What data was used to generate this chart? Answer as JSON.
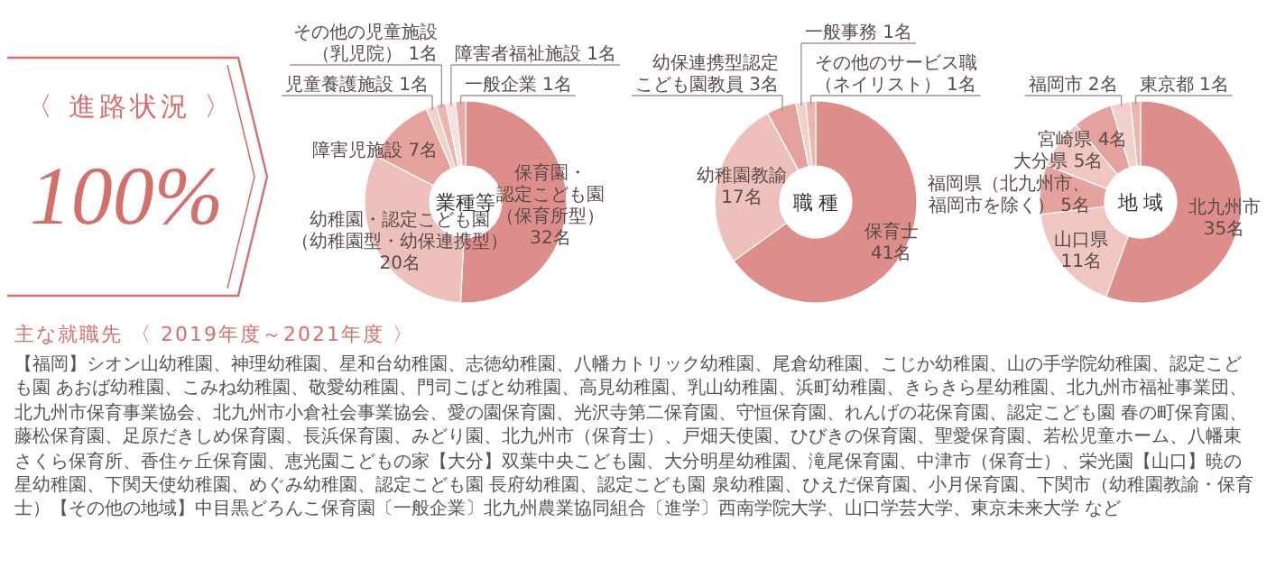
{
  "chart_data": [
    {
      "type": "other",
      "title": "〈 進路状況 〉",
      "annotations": [
        "100%"
      ]
    },
    {
      "type": "donut",
      "title": "業種等",
      "categories": [
        "保育園・認定こども園（保育所型）",
        "幼稚園・認定こども園（幼稚園型・幼保連携型）",
        "障害児施設",
        "児童養護施設",
        "その他の児童施設（乳児院）",
        "障害者福祉施設",
        "一般企業"
      ],
      "values": [
        32,
        20,
        7,
        1,
        1,
        1,
        1
      ],
      "value_labels": [
        "32名",
        "20名",
        "7名",
        "1名",
        "1名",
        "1名",
        "1名"
      ],
      "colors": [
        "#dd8e8a",
        "#eec0bb",
        "#e5a29d",
        "#f2d0cc",
        "#ebb5b0",
        "#f7e0dd",
        "#e8aaa5"
      ]
    },
    {
      "type": "donut",
      "title": "職 種",
      "categories": [
        "保育士",
        "幼稚園教諭",
        "幼保連携型認定こども園教員",
        "一般事務",
        "その他のサービス職（ネイリスト）"
      ],
      "values": [
        41,
        17,
        3,
        1,
        1
      ],
      "value_labels": [
        "41名",
        "17名",
        "3名",
        "1名",
        "1名"
      ],
      "colors": [
        "#dd8e8a",
        "#eec0bb",
        "#e5a29d",
        "#f2d0cc",
        "#ebb5b0"
      ]
    },
    {
      "type": "donut",
      "title": "地 域",
      "categories": [
        "北九州市",
        "山口県",
        "福岡県（北九州市、福岡市を除く）",
        "大分県",
        "宮崎県",
        "福岡市",
        "東京都"
      ],
      "values": [
        35,
        11,
        5,
        5,
        4,
        2,
        1
      ],
      "value_labels": [
        "35名",
        "11名",
        "5名",
        "5名",
        "4名",
        "2名",
        "1名"
      ],
      "colors": [
        "#dd8e8a",
        "#f0c6c1",
        "#e5a29d",
        "#f0c6c1",
        "#e5a29d",
        "#f2d0cc",
        "#ebb5b0"
      ]
    },
    {
      "type": "other",
      "title": "主な就職先 〈 2019年度～2021年度 〉",
      "annotations": [
        "【福岡】シオン山幼稚園、神理幼稚園、星和台幼稚園、志徳幼稚園、八幡カトリック幼稚園、尾倉幼稚園、こじか幼稚園、山の手学院幼稚園、認定こども園 あおば幼稚園、こみね幼稚園、敬愛幼稚園、門司こばと幼稚園、高見幼稚園、乳山幼稚園、浜町幼稚園、きらきら星幼稚園、北九州市福祉事業団、北九州市保育事業協会、北九州市小倉社会事業協会、愛の園保育園、光沢寺第二保育園、守恒保育園、れんげの花保育園、認定こども園 春の町保育園、藤松保育園、足原だきしめ保育園、長浜保育園、みどり園、北九州市（保育士）、戸畑天使園、ひびきの保育園、聖愛保育園、若松児童ホーム、八幡東さくら保育所、香住ヶ丘保育園、恵光園こどもの家【大分】双葉中央こども園、大分明星幼稚園、滝尾保育園、中津市（保育士）、栄光園【山口】暁の星幼稚園、下関天使幼稚園、めぐみ幼稚園、認定こども園 長府幼稚園、認定こども園 泉幼稚園、ひえだ保育園、小月保育園、下関市（幼稚園教諭・保育士）【その他の地域】中目黒どろんこ保育園〔一般企業〕北九州農業協同組合〔進学〕西南学院大学、山口学芸大学、東京未来大学 など"
      ]
    }
  ]
}
